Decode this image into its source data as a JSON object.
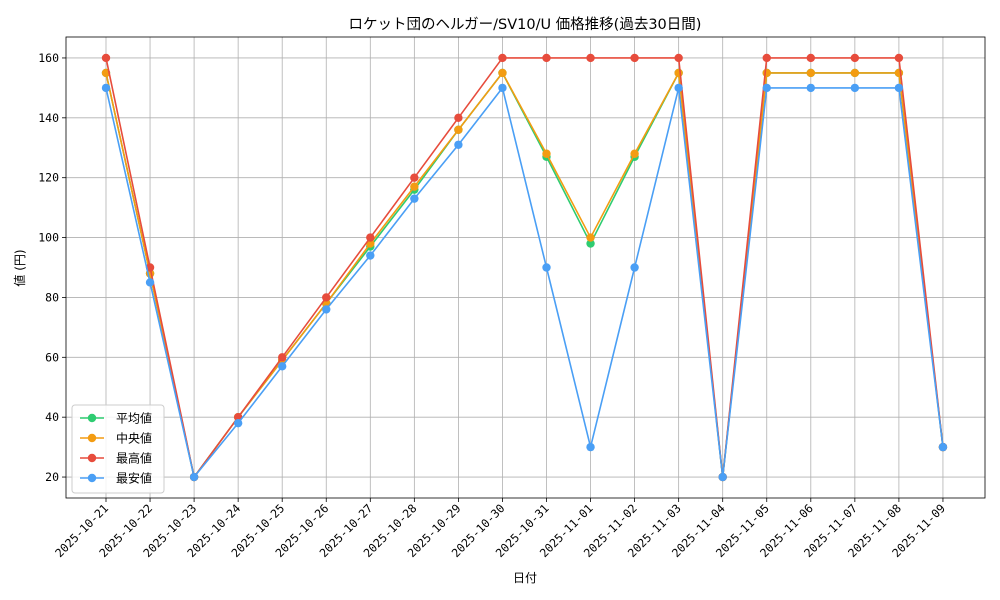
{
  "chart_data": {
    "type": "line",
    "title": "ロケット団のヘルガー/SV10/U 価格推移(過去30日間)",
    "xlabel": "日付",
    "ylabel": "値 (円)",
    "categories": [
      "2025-10-21",
      "2025-10-22",
      "2025-10-23",
      "2025-10-24",
      "2025-10-25",
      "2025-10-26",
      "2025-10-27",
      "2025-10-28",
      "2025-10-29",
      "2025-10-30",
      "2025-10-31",
      "2025-11-01",
      "2025-11-02",
      "2025-11-03",
      "2025-11-04",
      "2025-11-05",
      "2025-11-06",
      "2025-11-07",
      "2025-11-08",
      "2025-11-09"
    ],
    "ylim": [
      13,
      167
    ],
    "yticks": [
      20,
      40,
      60,
      80,
      100,
      120,
      140,
      160
    ],
    "grid": true,
    "legend_position": "lower-left",
    "series": [
      {
        "name": "平均値",
        "color": "#2ecc71",
        "values": [
          155,
          88,
          20,
          40,
          59,
          78,
          97,
          116,
          136,
          155,
          127,
          98,
          127,
          155,
          20,
          155,
          155,
          155,
          155,
          30
        ]
      },
      {
        "name": "中央値",
        "color": "#f39c12",
        "values": [
          155,
          88,
          20,
          40,
          59,
          78,
          98,
          117,
          136,
          155,
          128,
          100,
          128,
          155,
          20,
          155,
          155,
          155,
          155,
          30
        ]
      },
      {
        "name": "最高値",
        "color": "#e74c3c",
        "values": [
          160,
          90,
          20,
          40,
          60,
          80,
          100,
          120,
          140,
          160,
          160,
          160,
          160,
          160,
          20,
          160,
          160,
          160,
          160,
          30
        ]
      },
      {
        "name": "最安値",
        "color": "#4a9ff5",
        "values": [
          150,
          85,
          20,
          38,
          57,
          76,
          94,
          113,
          131,
          150,
          90,
          30,
          90,
          150,
          20,
          150,
          150,
          150,
          150,
          30
        ]
      }
    ]
  }
}
